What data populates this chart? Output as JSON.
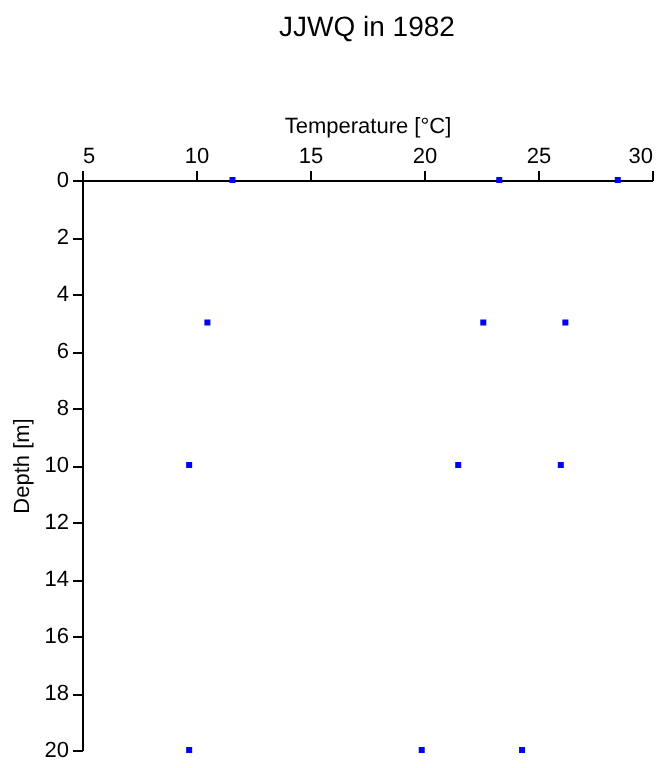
{
  "chart_data": {
    "type": "scatter",
    "title": "JJWQ in 1982",
    "xlabel": "Temperature [°C]",
    "ylabel": "Depth [m]",
    "x": [
      11.6,
      23.3,
      28.5,
      10.5,
      22.6,
      26.2,
      9.7,
      21.5,
      26.0,
      9.7,
      19.9,
      24.3
    ],
    "series": [
      {
        "color": "#0000ff",
        "values": [
          0,
          0,
          0,
          5,
          5,
          5,
          10,
          10,
          10,
          20,
          20,
          20
        ]
      }
    ],
    "xlim": [
      5,
      30
    ],
    "xticks": [
      5,
      10,
      15,
      20,
      25,
      30
    ],
    "ylim": [
      20,
      0
    ],
    "yticks": [
      0,
      2,
      4,
      6,
      8,
      10,
      12,
      14,
      16,
      18,
      20
    ],
    "grid": false,
    "legend": false,
    "marker": "square"
  }
}
